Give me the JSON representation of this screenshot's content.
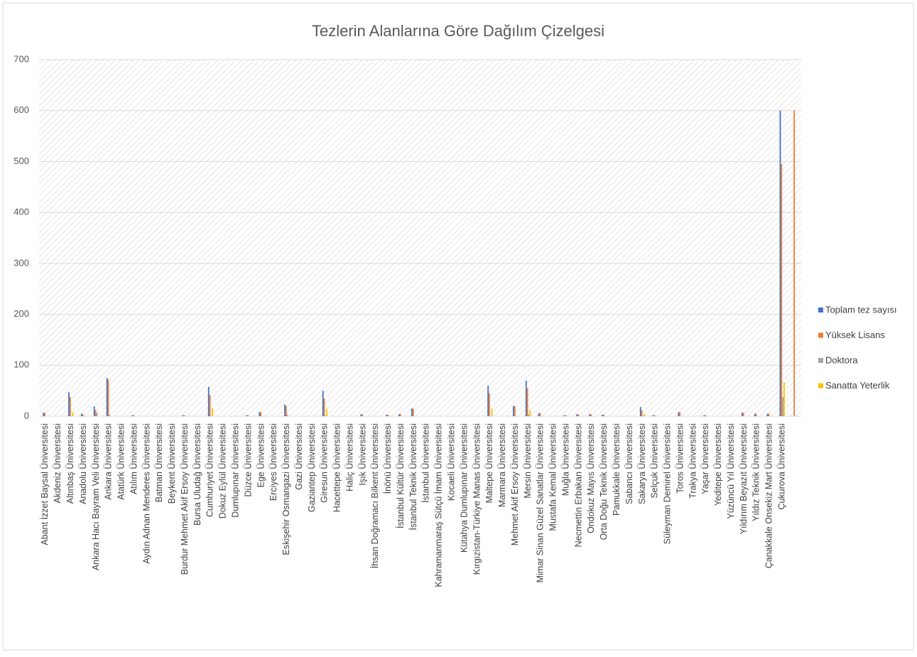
{
  "chart_data": {
    "type": "bar",
    "title": "Tezlerin Alanlarına Göre Dağılım Çizelgesi",
    "categories": [
      "Abant İzzet Baysal Üniversitesi",
      "Akdeniz Üniversitesi",
      "Altınbaş Üniversitesi",
      "Anadolu Üniversitesi",
      "Ankara Hacı Bayram Veli Üniversitesi",
      "Ankara Üniversitesi",
      "Atatürk Üniversitesi",
      "Atılım Üniversitesi",
      "Aydın Adnan Menderes Üniversitesi",
      "Batman Üniversitesi",
      "Beykent Üniversitesi",
      "Burdur Mehmet Akif Ersoy Üniversitesi",
      "Bursa Uludağ Üniversitesi",
      "Cumhuriyet Üniversitesi",
      "Dokuz Eylül Üniversitesi",
      "Dumlupınar Üniversitesi",
      "Düzce Üniversitesi",
      "Ege Üniversitesi",
      "Erciyes Üniversitesi",
      "Eskişehir Osmangazi Üniversitesi",
      "Gazi Üniversitesi",
      "Gaziantep Üniversitesi",
      "Giresun Üniversitesi",
      "Hacettepe Üniversitesi",
      "Haliç Üniversitesi",
      "Işık Üniversitesi",
      "İhsan Doğramacı Bilkent Üniversitesi",
      "İnönü Üniversitesi",
      "İstanbul Kültür Üniversitesi",
      "İstanbul Teknik Üniversitesi",
      "İstanbul Üniversitesi",
      "Kahramanmaraş Sütçü İmam Üniversitesi",
      "Kocaeli Üniversitesi",
      "Kütahya Dumlupınar Üniversitesi",
      "Kırgızistan-Türkiye Manas Üniversitesi",
      "Maltepe Üniversitesi",
      "Marmara Üniversitesi",
      "Mehmet Akif Ersoy Üniversitesi",
      "Mersin Üniversitesi",
      "Mimar Sinan Güzel Sanatlar Üniversitesi",
      "Mustafa Kemal Üniversitesi",
      "Muğla Üniversitesi",
      "Necmettin Erbakan Üniversitesi",
      "Ondokuz Mayıs Üniversitesi",
      "Orta Doğu Teknik Üniversitesi",
      "Pamukkale Üniversitesi",
      "Sabancı Üniversitesi",
      "Sakarya Üniversitesi",
      "Selçuk Üniversitesi",
      "Süleyman Demirel Üniversitesi",
      "Toros Üniversitesi",
      "Trakya Üniversitesi",
      "Yaşar Üniversitesi",
      "Yeditepe Üniversitesi",
      "Yüzüncü Yıl Üniversitesi",
      "Yıldırım Beyazıt Üniversitesi",
      "Yıldız Teknik Üniversitesi",
      "Çanakkale Onsekiz Mart Üniversitesi",
      "Çukurova Üniversitesi",
      null
    ],
    "series": [
      {
        "name": "Toplam tez sayısı",
        "color": "#4472c4",
        "values": [
          7,
          0,
          47,
          5,
          19,
          75,
          0,
          2,
          0,
          0,
          0,
          2,
          0,
          58,
          0,
          0,
          2,
          8,
          0,
          23,
          0,
          0,
          50,
          0,
          0,
          4,
          0,
          3,
          4,
          15,
          0,
          0,
          0,
          0,
          0,
          60,
          0,
          20,
          70,
          6,
          0,
          2,
          4,
          4,
          3,
          0,
          0,
          18,
          2,
          0,
          8,
          0,
          2,
          0,
          0,
          7,
          5,
          5,
          600,
          0
        ]
      },
      {
        "name": "Yüksek Lisans",
        "color": "#ed7d31",
        "values": [
          7,
          0,
          38,
          4,
          12,
          72,
          0,
          2,
          0,
          0,
          0,
          2,
          0,
          42,
          0,
          0,
          2,
          8,
          0,
          20,
          0,
          0,
          35,
          0,
          0,
          4,
          0,
          3,
          4,
          15,
          0,
          0,
          0,
          0,
          0,
          45,
          0,
          20,
          55,
          6,
          0,
          2,
          4,
          4,
          3,
          0,
          0,
          12,
          2,
          0,
          8,
          0,
          2,
          0,
          0,
          7,
          5,
          5,
          495,
          600
        ]
      },
      {
        "name": "Doktora",
        "color": "#a5a5a5",
        "values": [
          0,
          0,
          0,
          0,
          7,
          3,
          0,
          0,
          0,
          0,
          0,
          0,
          0,
          0,
          0,
          0,
          0,
          0,
          0,
          3,
          0,
          0,
          1,
          0,
          0,
          0,
          0,
          0,
          0,
          0,
          0,
          0,
          0,
          0,
          0,
          0,
          0,
          0,
          3,
          0,
          0,
          0,
          0,
          0,
          0,
          0,
          0,
          1,
          0,
          0,
          0,
          0,
          0,
          0,
          0,
          0,
          0,
          0,
          38,
          0
        ]
      },
      {
        "name": "Sanatta Yeterlik",
        "color": "#ffc000",
        "values": [
          0,
          0,
          8,
          0,
          0,
          0,
          0,
          0,
          0,
          0,
          0,
          0,
          0,
          16,
          0,
          0,
          0,
          0,
          0,
          0,
          0,
          0,
          14,
          0,
          0,
          0,
          0,
          0,
          0,
          0,
          0,
          0,
          0,
          0,
          0,
          15,
          0,
          0,
          12,
          0,
          0,
          0,
          0,
          0,
          0,
          0,
          0,
          5,
          0,
          0,
          0,
          0,
          0,
          0,
          0,
          0,
          0,
          0,
          67,
          0
        ]
      }
    ],
    "ylim": [
      0,
      700
    ],
    "yticks": [
      0,
      100,
      200,
      300,
      400,
      500,
      600,
      700
    ],
    "grid": true,
    "legend": "right"
  }
}
